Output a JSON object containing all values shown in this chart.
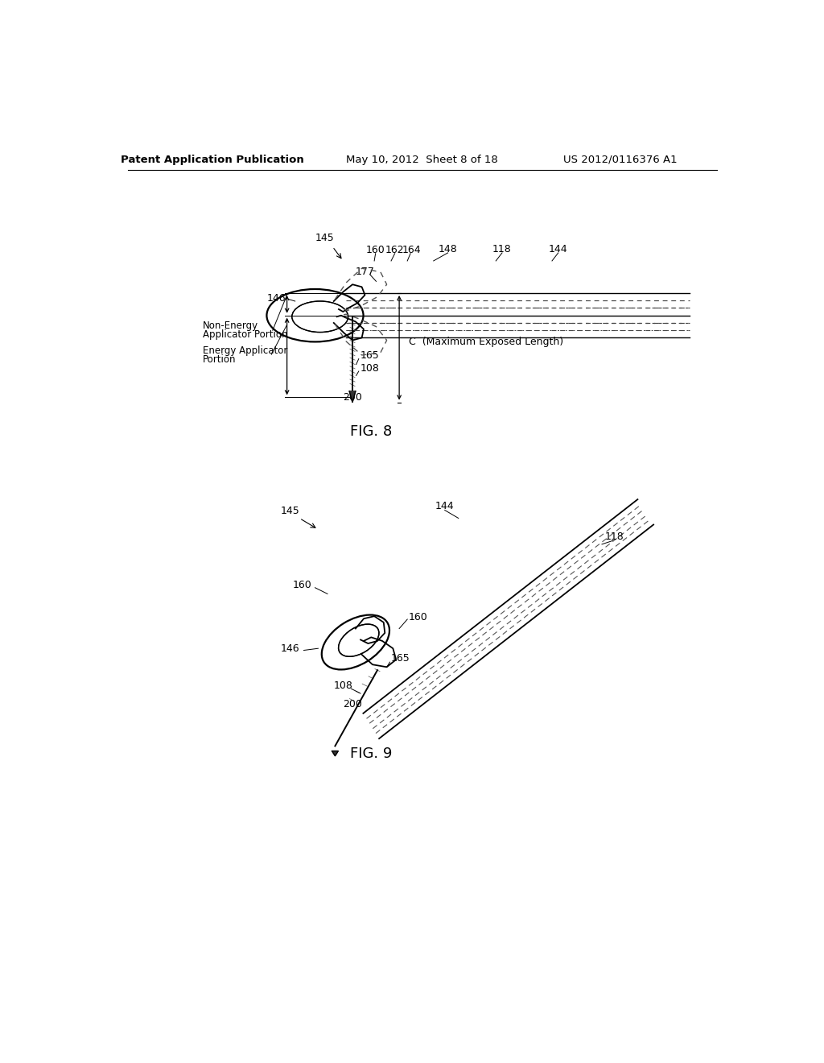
{
  "bg_color": "#ffffff",
  "header_left": "Patent Application Publication",
  "header_center": "May 10, 2012  Sheet 8 of 18",
  "header_right": "US 2012/0116376 A1",
  "fig8_label": "FIG. 8",
  "fig9_label": "FIG. 9",
  "text_color": "#000000",
  "line_color": "#000000"
}
